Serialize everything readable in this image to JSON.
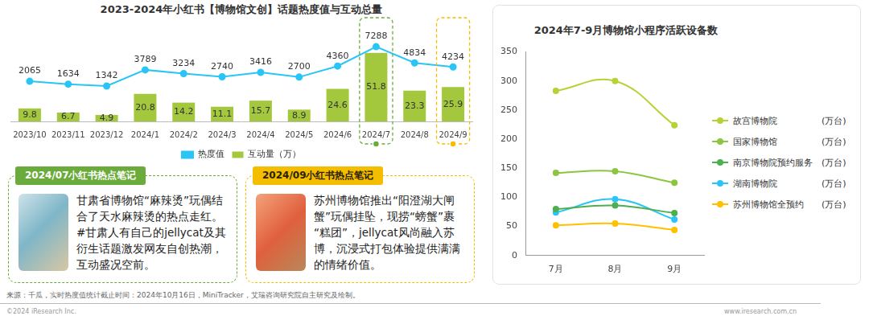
{
  "chart_data": [
    {
      "type": "bar",
      "title": "2023-2024年小红书【博物馆文创】话题热度值与互动总量",
      "categories": [
        "2023/10",
        "2023/11",
        "2023/12",
        "2024/1",
        "2024/2",
        "2024/3",
        "2024/4",
        "2024/5",
        "2024/6",
        "2024/7",
        "2024/8",
        "2024/9"
      ],
      "series": [
        {
          "name": "互动量（万）",
          "type": "bar",
          "color": "#a4c83d",
          "values": [
            9.8,
            6.7,
            4.9,
            20.8,
            14.2,
            11.1,
            15.7,
            8.9,
            24.6,
            51.8,
            23.3,
            25.9
          ]
        },
        {
          "name": "热度值",
          "type": "line",
          "color": "#29c5f6",
          "marker": "circle",
          "axis": "y2",
          "values": [
            2065,
            1634,
            1342,
            3789,
            3234,
            2740,
            3416,
            2700,
            4360,
            7288,
            4834,
            4234
          ]
        }
      ],
      "ylim": [
        0,
        65
      ],
      "y2lim": [
        -4000,
        9000
      ],
      "tick_labels": "x",
      "data_labels": true,
      "grid": false,
      "legend": "bottom",
      "annotations": [
        {
          "category": "2024/7",
          "color": "#6aab3b",
          "title": "2024/07小红书热点笔记",
          "text": "甘肃省博物馆“麻辣烫”玩偶结合了天水麻辣烫的热点走红。#甘肃人有自己的jellycat及其衍生话题激发网友自创热潮，互动盛况空前。"
        },
        {
          "category": "2024/9",
          "color": "#f5bd00",
          "title": "2024/09小红书热点笔记",
          "text": "苏州博物馆推出“阳澄湖大闸蟹”玩偶挂坠，现捞“螃蟹”裹“糕团”，jellycat风尚融入苏博，沉浸式打包体验提供满满的情绪价值。"
        }
      ]
    },
    {
      "type": "line",
      "title": "2024年7-9月博物馆小程序活跃设备数",
      "categories": [
        "7月",
        "8月",
        "9月"
      ],
      "unit": "(万台)",
      "series": [
        {
          "name": "故宫博物院",
          "color": "#b5d334",
          "values": [
            283,
            300,
            224
          ]
        },
        {
          "name": "国家博物馆",
          "color": "#8cc540",
          "values": [
            142,
            145,
            125
          ]
        },
        {
          "name": "南京博物院预约服务",
          "color": "#4caf50",
          "values": [
            80,
            86,
            73
          ]
        },
        {
          "name": "湖南博物院",
          "color": "#29c5f6",
          "values": [
            74,
            97,
            62
          ]
        },
        {
          "name": "苏州博物馆全预约",
          "color": "#ffc000",
          "values": [
            52,
            55,
            44
          ]
        }
      ],
      "ylim": [
        0,
        350
      ],
      "yticks": [
        0,
        50,
        100,
        150,
        200,
        250,
        300,
        350
      ],
      "grid": false,
      "legend": "right",
      "line_style": "smooth",
      "marker": "circle"
    }
  ],
  "source": "来源：千瓜，实时热度值统计截止时间：2024年10月16日，MiniTracker，艾瑞咨询研究院自主研究及绘制。",
  "copyright": "©2024 iResearch Inc.",
  "website": "www.iresearch.com.cn"
}
